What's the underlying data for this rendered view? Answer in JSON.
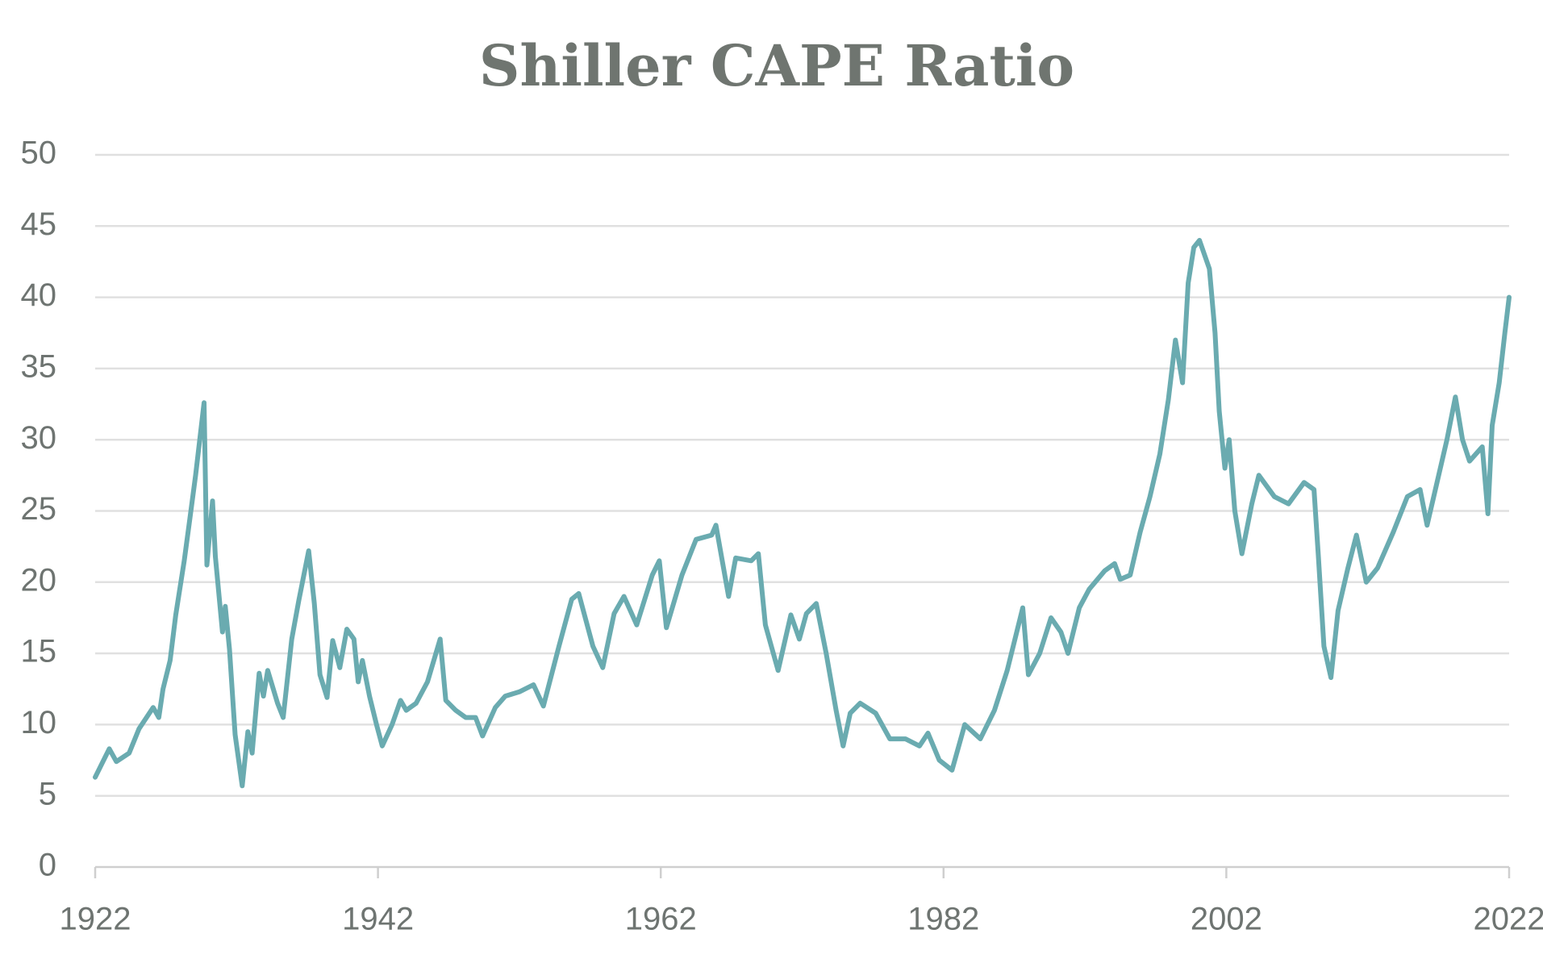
{
  "chart_data": {
    "type": "line",
    "title": "Shiller CAPE Ratio",
    "x": [
      1922.0,
      1923.0,
      1923.5,
      1924.4,
      1925.1,
      1926.1,
      1926.5,
      1926.8,
      1927.3,
      1927.7,
      1928.3,
      1928.7,
      1929.1,
      1929.7,
      1929.9,
      1930.3,
      1930.5,
      1931.0,
      1931.2,
      1931.5,
      1931.9,
      1932.4,
      1932.8,
      1933.1,
      1933.6,
      1933.9,
      1934.2,
      1934.9,
      1935.3,
      1935.9,
      1936.4,
      1937.1,
      1937.5,
      1937.9,
      1938.4,
      1938.8,
      1939.3,
      1939.8,
      1940.3,
      1940.6,
      1940.9,
      1941.4,
      1941.9,
      1942.3,
      1943.0,
      1943.6,
      1944.0,
      1944.7,
      1945.5,
      1946.4,
      1946.8,
      1947.5,
      1948.2,
      1948.9,
      1949.4,
      1950.3,
      1951.0,
      1952.0,
      1953.0,
      1953.7,
      1954.8,
      1955.7,
      1956.2,
      1957.2,
      1957.9,
      1958.7,
      1959.4,
      1960.3,
      1961.4,
      1961.9,
      1962.4,
      1963.5,
      1964.5,
      1965.6,
      1965.9,
      1966.8,
      1967.3,
      1968.4,
      1968.9,
      1969.4,
      1970.3,
      1971.2,
      1971.8,
      1972.3,
      1973.0,
      1973.7,
      1974.4,
      1974.9,
      1975.4,
      1976.1,
      1977.2,
      1978.2,
      1979.3,
      1980.3,
      1980.9,
      1981.7,
      1982.6,
      1983.5,
      1984.6,
      1985.6,
      1986.5,
      1987.6,
      1988.0,
      1988.8,
      1989.6,
      1990.3,
      1990.8,
      1991.6,
      1992.3,
      1993.4,
      1994.1,
      1994.5,
      1995.2,
      1995.9,
      1996.6,
      1997.3,
      1997.9,
      1998.4,
      1998.9,
      1999.3,
      1999.7,
      2000.1,
      2000.8,
      2001.2,
      2001.5,
      2001.9,
      2002.2,
      2002.6,
      2003.1,
      2003.8,
      2004.3,
      2005.4,
      2006.4,
      2007.5,
      2008.2,
      2008.5,
      2008.9,
      2009.4,
      2009.9,
      2010.6,
      2011.2,
      2011.9,
      2012.7,
      2013.8,
      2014.8,
      2015.7,
      2016.2,
      2016.9,
      2017.6,
      2018.2,
      2018.7,
      2019.2,
      2020.1,
      2020.5,
      2020.8,
      2021.3,
      2021.7,
      2022.0
    ],
    "series": [
      {
        "color": "#6aabb0",
        "values": [
          6.3,
          8.3,
          7.4,
          8,
          9.7,
          11.2,
          10.5,
          12.5,
          14.5,
          17.7,
          21.5,
          24.5,
          27.5,
          32.6,
          21.2,
          25.7,
          21.8,
          16.5,
          18.3,
          15.3,
          9.3,
          5.7,
          9.5,
          8.0,
          13.6,
          12,
          13.8,
          11.5,
          10.5,
          16,
          18.7,
          22.2,
          18.5,
          13.5,
          11.9,
          15.9,
          14.0,
          16.7,
          16,
          13,
          14.5,
          12,
          10,
          8.5,
          10,
          11.7,
          11,
          11.5,
          13,
          16,
          11.7,
          11,
          10.5,
          10.5,
          9.2,
          11.2,
          12,
          12.3,
          12.8,
          11.3,
          15.5,
          18.8,
          19.2,
          15.5,
          14,
          17.8,
          19,
          17,
          20.5,
          21.5,
          16.8,
          20.5,
          23,
          23.3,
          24,
          19,
          21.7,
          21.5,
          22,
          17,
          13.8,
          17.7,
          16,
          17.8,
          18.5,
          15,
          11,
          8.5,
          10.8,
          11.5,
          10.8,
          9,
          9,
          8.5,
          9.4,
          7.5,
          6.8,
          10,
          9,
          11,
          13.8,
          18.2,
          13.5,
          15,
          17.5,
          16.5,
          15,
          18.2,
          19.5,
          20.8,
          21.3,
          20.2,
          20.5,
          23.5,
          26,
          29,
          32.8,
          37,
          34,
          41,
          43.5,
          44,
          42,
          37.5,
          32,
          28,
          30,
          25,
          22,
          25.5,
          27.5,
          26,
          25.5,
          27,
          26.5,
          22,
          15.5,
          13.3,
          18,
          21,
          23.3,
          20,
          21,
          23.5,
          26,
          26.5,
          24,
          27,
          30,
          33,
          30,
          28.5,
          29.5,
          24.8,
          31,
          34,
          37.5,
          40
        ]
      }
    ],
    "xlim": [
      1922,
      2022
    ],
    "xticks": [
      1922,
      1942,
      1962,
      1982,
      2002,
      2022
    ],
    "ylim": [
      0,
      50
    ],
    "yticks": [
      0,
      5,
      10,
      15,
      20,
      25,
      30,
      35,
      40,
      45,
      50
    ],
    "grid": true
  }
}
